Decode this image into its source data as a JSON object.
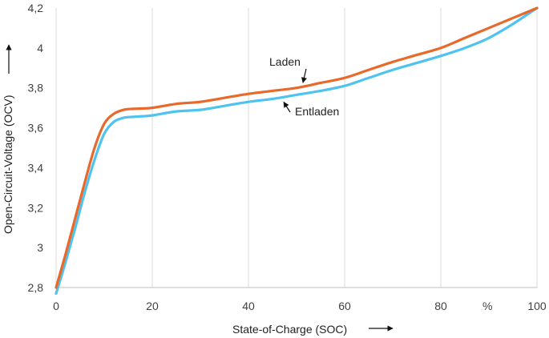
{
  "chart_data": {
    "type": "line",
    "title": "",
    "xlabel": "State-of-Charge (SOC)",
    "ylabel": "Open-Circuit-Voltage (OCV)",
    "x_unit_label": "%",
    "xlim": [
      0,
      100
    ],
    "ylim": [
      2.8,
      4.2
    ],
    "x_ticks": [
      0,
      20,
      40,
      60,
      80,
      100
    ],
    "x_tick_labels": [
      "0",
      "20",
      "40",
      "60",
      "80",
      "100"
    ],
    "y_ticks": [
      2.8,
      3.0,
      3.2,
      3.4,
      3.6,
      3.8,
      4.0,
      4.2
    ],
    "y_tick_labels": [
      "2,8",
      "3",
      "3,2",
      "3,4",
      "3,6",
      "3,8",
      "4",
      "4,2"
    ],
    "grid": {
      "vertical": true,
      "horizontal": false
    },
    "series": [
      {
        "name": "Laden",
        "color": "#E8692A",
        "x": [
          0,
          2,
          4,
          6,
          8,
          10,
          12,
          14,
          16,
          18,
          20,
          25,
          30,
          35,
          40,
          45,
          50,
          55,
          60,
          65,
          70,
          75,
          80,
          85,
          90,
          95,
          100
        ],
        "y": [
          2.8,
          2.97,
          3.15,
          3.33,
          3.5,
          3.62,
          3.67,
          3.69,
          3.695,
          3.697,
          3.7,
          3.72,
          3.73,
          3.75,
          3.77,
          3.785,
          3.8,
          3.825,
          3.85,
          3.89,
          3.93,
          3.965,
          4.0,
          4.05,
          4.1,
          4.15,
          4.2
        ]
      },
      {
        "name": "Entladen",
        "color": "#4FC3F0",
        "x": [
          0,
          2,
          4,
          6,
          8,
          10,
          12,
          14,
          16,
          18,
          20,
          25,
          30,
          35,
          40,
          45,
          50,
          55,
          60,
          65,
          70,
          75,
          80,
          85,
          90,
          95,
          100
        ],
        "y": [
          2.77,
          2.93,
          3.1,
          3.28,
          3.44,
          3.57,
          3.63,
          3.65,
          3.655,
          3.658,
          3.662,
          3.682,
          3.69,
          3.71,
          3.73,
          3.745,
          3.765,
          3.785,
          3.81,
          3.85,
          3.89,
          3.925,
          3.96,
          4.0,
          4.05,
          4.12,
          4.2
        ]
      }
    ],
    "annotations": [
      {
        "text": "Laden",
        "target_series": "Laden",
        "x": 52,
        "y": 3.81
      },
      {
        "text": "Entladen",
        "target_series": "Entladen",
        "x": 45,
        "y": 3.745
      }
    ],
    "axis_arrows": {
      "x": true,
      "y": true
    }
  }
}
